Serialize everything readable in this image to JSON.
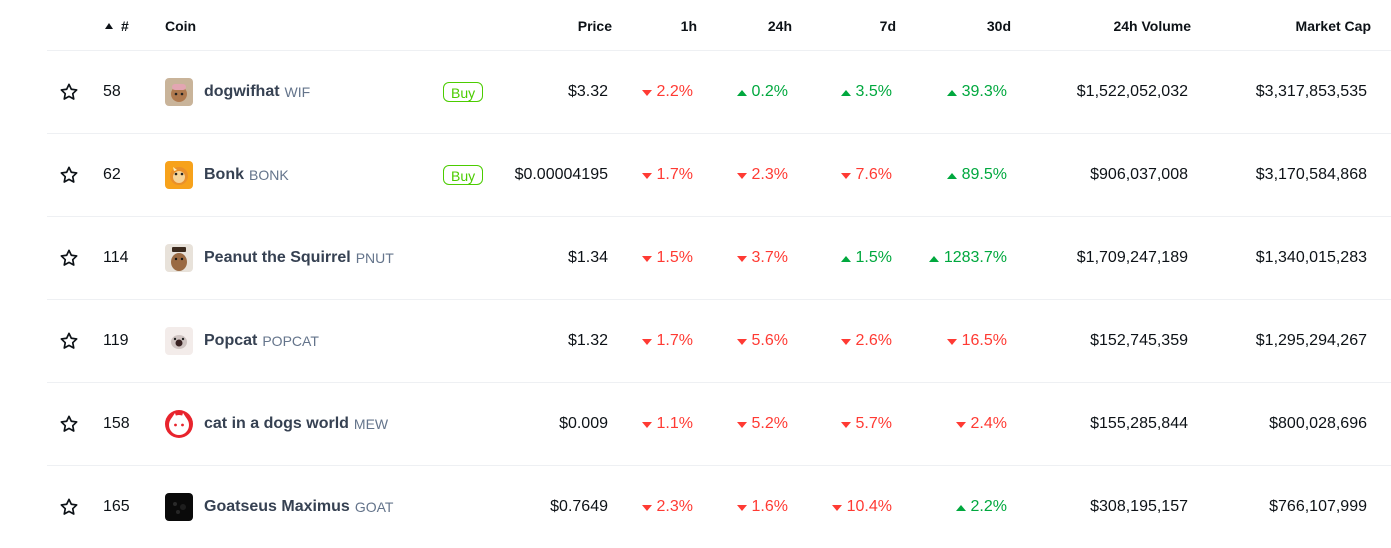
{
  "header": {
    "rank": "#",
    "coin": "Coin",
    "price": "Price",
    "h1": "1h",
    "h24": "24h",
    "d7": "7d",
    "d30": "30d",
    "volume": "24h Volume",
    "market_cap": "Market Cap"
  },
  "rows": [
    {
      "rank": "58",
      "name": "dogwifhat",
      "symbol": "WIF",
      "buy": "Buy",
      "price": "$3.32",
      "h1": "2.2%",
      "h1_dir": "down",
      "h24": "0.2%",
      "h24_dir": "up",
      "d7": "3.5%",
      "d7_dir": "up",
      "d30": "39.3%",
      "d30_dir": "up",
      "volume": "$1,522,052,032",
      "market_cap": "$3,317,853,535",
      "logo_icon": "dogwifhat-logo-icon"
    },
    {
      "rank": "62",
      "name": "Bonk",
      "symbol": "BONK",
      "buy": "Buy",
      "price": "$0.00004195",
      "h1": "1.7%",
      "h1_dir": "down",
      "h24": "2.3%",
      "h24_dir": "down",
      "d7": "7.6%",
      "d7_dir": "down",
      "d30": "89.5%",
      "d30_dir": "up",
      "volume": "$906,037,008",
      "market_cap": "$3,170,584,868",
      "logo_icon": "bonk-logo-icon"
    },
    {
      "rank": "114",
      "name": "Peanut the Squirrel",
      "symbol": "PNUT",
      "buy": "",
      "price": "$1.34",
      "h1": "1.5%",
      "h1_dir": "down",
      "h24": "3.7%",
      "h24_dir": "down",
      "d7": "1.5%",
      "d7_dir": "up",
      "d30": "1283.7%",
      "d30_dir": "up",
      "volume": "$1,709,247,189",
      "market_cap": "$1,340,015,283",
      "logo_icon": "peanut-logo-icon"
    },
    {
      "rank": "119",
      "name": "Popcat",
      "symbol": "POPCAT",
      "buy": "",
      "price": "$1.32",
      "h1": "1.7%",
      "h1_dir": "down",
      "h24": "5.6%",
      "h24_dir": "down",
      "d7": "2.6%",
      "d7_dir": "down",
      "d30": "16.5%",
      "d30_dir": "down",
      "volume": "$152,745,359",
      "market_cap": "$1,295,294,267",
      "logo_icon": "popcat-logo-icon"
    },
    {
      "rank": "158",
      "name": "cat in a dogs world",
      "symbol": "MEW",
      "buy": "",
      "price": "$0.009",
      "h1": "1.1%",
      "h1_dir": "down",
      "h24": "5.2%",
      "h24_dir": "down",
      "d7": "5.7%",
      "d7_dir": "down",
      "d30": "2.4%",
      "d30_dir": "down",
      "volume": "$155,285,844",
      "market_cap": "$800,028,696",
      "logo_icon": "mew-logo-icon"
    },
    {
      "rank": "165",
      "name": "Goatseus Maximus",
      "symbol": "GOAT",
      "buy": "",
      "price": "$0.7649",
      "h1": "2.3%",
      "h1_dir": "down",
      "h24": "1.6%",
      "h24_dir": "down",
      "d7": "10.4%",
      "d7_dir": "down",
      "d30": "2.2%",
      "d30_dir": "up",
      "volume": "$308,195,157",
      "market_cap": "$766,107,999",
      "logo_icon": "goat-logo-icon"
    }
  ],
  "colors": {
    "up": "#00a83e",
    "down": "#ff3a33",
    "buy": "#4bcc00"
  }
}
